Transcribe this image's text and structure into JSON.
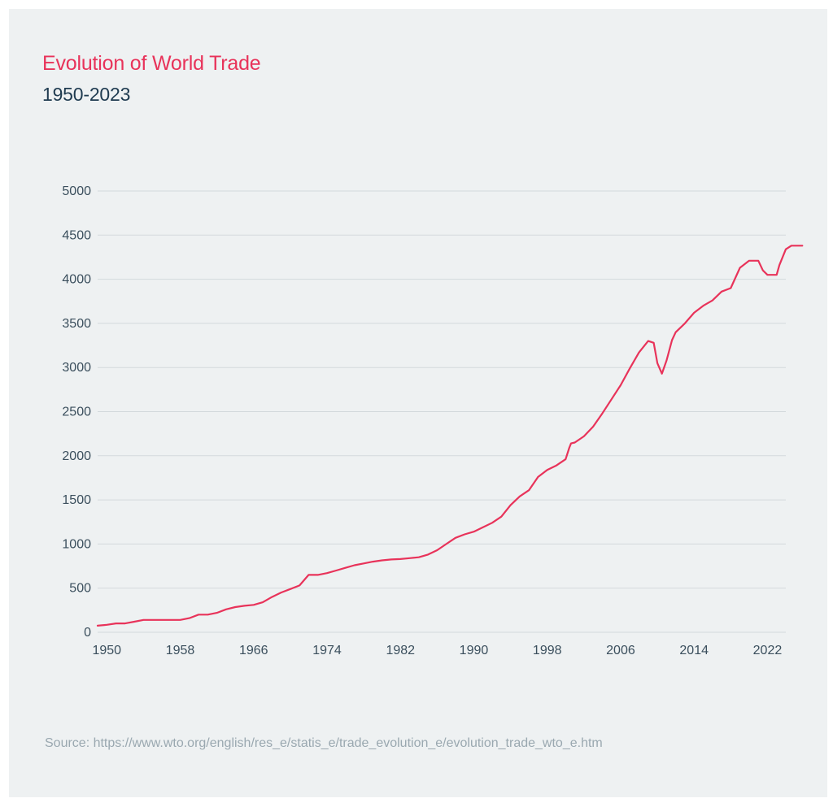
{
  "header": {
    "title": "Evolution of World Trade",
    "subtitle": "1950-2023"
  },
  "footer": {
    "source": "Source: https://www.wto.org/english/res_e/statis_e/trade_evolution_e/evolution_trade_wto_e.htm"
  },
  "colors": {
    "background": "#eef1f2",
    "title": "#e8335a",
    "subtitle": "#1f3b50",
    "line": "#e8335a",
    "grid": "#d3d9dc",
    "tick_text": "#3b4f5d",
    "source_text": "#9aa8b0"
  },
  "chart_data": {
    "type": "line",
    "title": "Evolution of World Trade",
    "subtitle": "1950-2023",
    "xlabel": "",
    "ylabel": "",
    "xlim": [
      1949,
      2024
    ],
    "ylim": [
      0,
      5000
    ],
    "x_ticks": [
      1950,
      1958,
      1966,
      1974,
      1982,
      1990,
      1998,
      2006,
      2014,
      2022
    ],
    "y_ticks": [
      0,
      500,
      1000,
      1500,
      2000,
      2500,
      3000,
      3500,
      4000,
      4500,
      5000
    ],
    "grid": "horizontal",
    "legend": "none",
    "series": [
      {
        "color": "#e8335a",
        "points": [
          [
            1949,
            75
          ],
          [
            1950,
            85
          ],
          [
            1951,
            100
          ],
          [
            1952,
            100
          ],
          [
            1953,
            120
          ],
          [
            1954,
            140
          ],
          [
            1955,
            140
          ],
          [
            1956,
            140
          ],
          [
            1957,
            140
          ],
          [
            1958,
            140
          ],
          [
            1959,
            160
          ],
          [
            1960,
            200
          ],
          [
            1961,
            200
          ],
          [
            1962,
            220
          ],
          [
            1963,
            260
          ],
          [
            1964,
            285
          ],
          [
            1965,
            300
          ],
          [
            1966,
            310
          ],
          [
            1967,
            340
          ],
          [
            1968,
            400
          ],
          [
            1969,
            450
          ],
          [
            1970,
            490
          ],
          [
            1971,
            530
          ],
          [
            1972,
            650
          ],
          [
            1973,
            650
          ],
          [
            1974,
            670
          ],
          [
            1975,
            700
          ],
          [
            1976,
            730
          ],
          [
            1977,
            760
          ],
          [
            1978,
            780
          ],
          [
            1979,
            800
          ],
          [
            1980,
            815
          ],
          [
            1981,
            825
          ],
          [
            1982,
            830
          ],
          [
            1983,
            840
          ],
          [
            1984,
            850
          ],
          [
            1985,
            880
          ],
          [
            1986,
            930
          ],
          [
            1987,
            1000
          ],
          [
            1988,
            1070
          ],
          [
            1989,
            1110
          ],
          [
            1990,
            1140
          ],
          [
            1991,
            1190
          ],
          [
            1992,
            1240
          ],
          [
            1993,
            1310
          ],
          [
            1994,
            1440
          ],
          [
            1995,
            1540
          ],
          [
            1996,
            1610
          ],
          [
            1997,
            1760
          ],
          [
            1998,
            1840
          ],
          [
            1999,
            1890
          ],
          [
            2000,
            1960
          ],
          [
            2000.4,
            2090
          ],
          [
            2000.6,
            2140
          ],
          [
            2001,
            2150
          ],
          [
            2002,
            2220
          ],
          [
            2003,
            2330
          ],
          [
            2004,
            2480
          ],
          [
            2005,
            2640
          ],
          [
            2006,
            2800
          ],
          [
            2007,
            2990
          ],
          [
            2008,
            3170
          ],
          [
            2009,
            3300
          ],
          [
            2009.6,
            3280
          ],
          [
            2010,
            3050
          ],
          [
            2010.5,
            2930
          ],
          [
            2011,
            3080
          ],
          [
            2011.6,
            3310
          ],
          [
            2012,
            3400
          ],
          [
            2013,
            3500
          ],
          [
            2014,
            3620
          ],
          [
            2015,
            3700
          ],
          [
            2016,
            3760
          ],
          [
            2017,
            3860
          ],
          [
            2018,
            3900
          ],
          [
            2019,
            4130
          ],
          [
            2020,
            4210
          ],
          [
            2021,
            4210
          ],
          [
            2021.5,
            4100
          ],
          [
            2022,
            4050
          ],
          [
            2023,
            4050
          ],
          [
            2023.3,
            4160
          ],
          [
            2024,
            4340
          ],
          [
            2024.6,
            4380
          ],
          [
            2025.8,
            4380
          ]
        ]
      }
    ]
  }
}
